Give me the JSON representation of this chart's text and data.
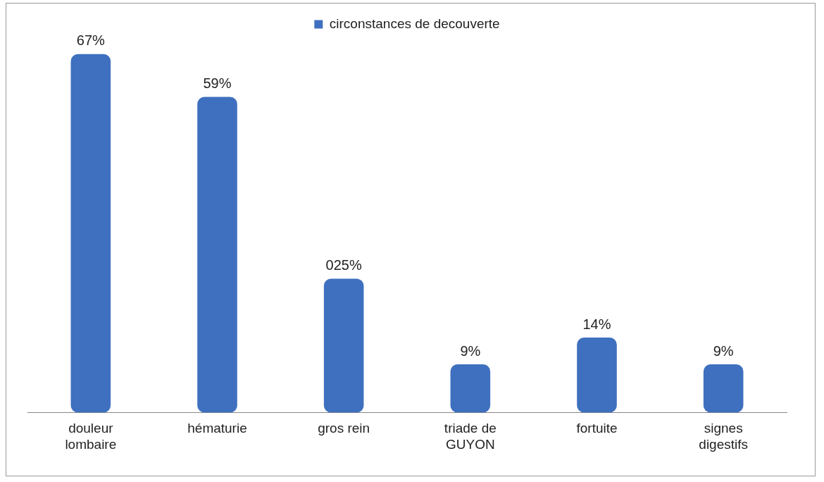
{
  "chart_data": {
    "type": "bar",
    "categories": [
      "douleur lombaire",
      "hématurie",
      "gros rein",
      "triade de GUYON",
      "fortuite",
      "signes digestifs"
    ],
    "series": [
      {
        "name": "circonstances de decouverte",
        "color": "#3f70bf",
        "values": [
          67,
          59,
          25,
          9,
          14,
          9
        ],
        "value_labels": [
          "67%",
          "59%",
          "025%",
          "9%",
          "14%",
          "9%"
        ]
      }
    ],
    "legend": "top",
    "grid": false,
    "tick_labels": "x"
  }
}
